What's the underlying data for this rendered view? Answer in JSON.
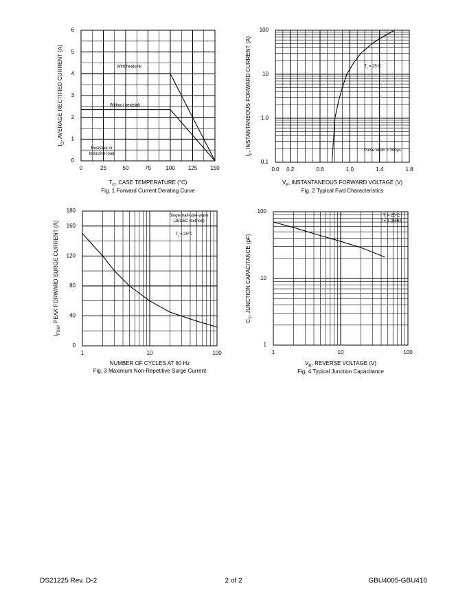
{
  "chart_data": [
    {
      "type": "line",
      "title": "Fig. 1  Forward Current Derating Curve",
      "xlabel": [
        "T",
        "C",
        ", CASE TEMPERATURE (°C)"
      ],
      "ylabel": [
        "I",
        "O",
        ", AVERAGE RECTIFIED CURRENT (A)"
      ],
      "x": [
        0,
        100,
        150
      ],
      "series": [
        {
          "name": "With heatsink",
          "color": "#000000",
          "values": [
            4,
            4,
            0
          ]
        },
        {
          "name": "Without heatsink",
          "color": "#000000",
          "values": [
            2.35,
            2.35,
            0
          ]
        }
      ],
      "annotations": [
        [
          "Resistive or"
        ],
        [
          "Inductive load"
        ]
      ],
      "xlim": [
        0,
        150
      ],
      "xticks": [
        0,
        25,
        50,
        75,
        100,
        125,
        150
      ],
      "ylim": [
        0,
        6
      ],
      "yticks": [
        0,
        1,
        2,
        3,
        4,
        5,
        6
      ],
      "grid": true
    },
    {
      "type": "line",
      "title": "Fig. 2  Typical Fwd Characteristics",
      "xlabel": [
        "V",
        "F",
        ", INSTANTANEOUS FORWARD VOLTAGE (V)"
      ],
      "ylabel": [
        "I",
        "F",
        ", INSTANTANEOUS FORWARD CURRENT (A)"
      ],
      "x": [
        0.76,
        0.78,
        0.8,
        0.85,
        0.9,
        0.96,
        1.05,
        1.15,
        1.3,
        1.45,
        1.6
      ],
      "values": [
        0.1,
        0.3,
        1,
        2.5,
        5,
        10,
        18,
        30,
        50,
        72,
        100
      ],
      "color": "#000000",
      "annotations": [
        [
          "T",
          "j",
          " = 25°C"
        ],
        [
          "Pulse width = 300µs"
        ]
      ],
      "xlim": [
        0,
        1.8
      ],
      "xticks": [
        {
          "value": 0,
          "label": "0.0"
        },
        0.2,
        0.6,
        {
          "value": 1,
          "label": "1.0"
        },
        1.4,
        1.8
      ],
      "ylim": [
        0.1,
        100
      ],
      "yticks": [
        0.1,
        {
          "value": 1,
          "label": "1.0"
        },
        10,
        100
      ],
      "ylog": true,
      "grid": true
    },
    {
      "type": "line",
      "title": "Fig. 3  Maximum Non-Repetitive Surge Current",
      "xlabel": [
        "NUMBER OF CYCLES AT 60 Hz"
      ],
      "ylabel": [
        "I",
        "FSM",
        ", PEAK FORWARD SURGE CURRENT (A)"
      ],
      "x": [
        1,
        2,
        3,
        5,
        10,
        20,
        50,
        100
      ],
      "values": [
        150,
        120,
        100,
        80,
        60,
        45,
        33,
        25
      ],
      "color": "#000000",
      "annotations": [
        [
          "Single half-sine-wave"
        ],
        [
          "(JEDEC method)"
        ],
        [
          "T",
          "j",
          " = 25°C"
        ]
      ],
      "xlim": [
        1,
        100
      ],
      "xticks": [
        1,
        10,
        100
      ],
      "xlog": true,
      "ylim": [
        0,
        180
      ],
      "yticks": [
        0,
        40,
        80,
        120,
        160,
        180
      ],
      "grid": true
    },
    {
      "type": "line",
      "title": "Fig. 4  Typical Junction Capacitance",
      "xlabel": [
        "V",
        "R",
        ", REVERSE VOLTAGE (V)"
      ],
      "ylabel": [
        "C",
        "T",
        ", JUNCTION CAPACITANCE (pF)"
      ],
      "x": [
        1,
        2,
        5,
        10,
        20,
        45
      ],
      "values": [
        70,
        58,
        44,
        36,
        29,
        21
      ],
      "color": "#000000",
      "annotations": [
        [
          "T",
          "j",
          " = 25°C"
        ],
        [
          "f = 1.0MHz"
        ]
      ],
      "xlim": [
        1,
        100
      ],
      "xticks": [
        1,
        10,
        100
      ],
      "xlog": true,
      "ylim": [
        1,
        100
      ],
      "yticks": [
        1,
        10,
        100
      ],
      "ylog": true,
      "grid": true
    }
  ],
  "footer": {
    "doc": "DS21225 Rev. D-2",
    "page": "2 of 2",
    "part": "GBU4005-GBU410"
  }
}
